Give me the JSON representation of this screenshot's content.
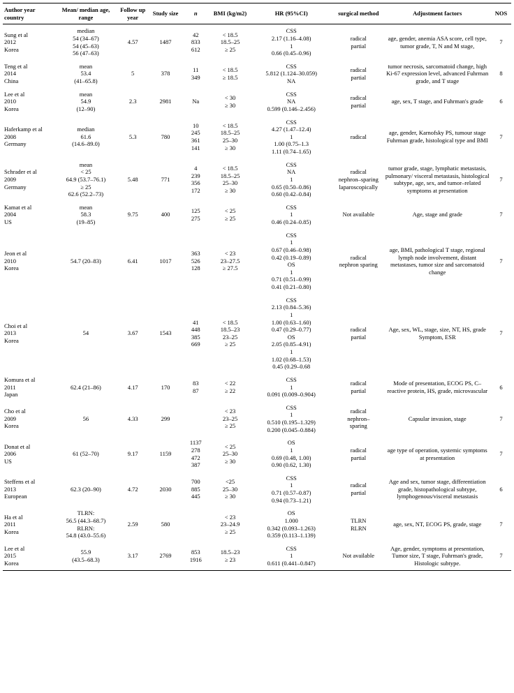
{
  "columns": [
    "Author year country",
    "Mean/ median age, range",
    "Follow up year",
    "Study size",
    "n",
    "BMI (kg/m2)",
    "HR (95%CI)",
    "surgical method",
    "Adjustment factors",
    "NOS"
  ],
  "rows": [
    {
      "author": "Sung et al\n2012\nKorea",
      "age": "median\n54 (34–67)\n54 (45–63)\n56 (47–63)",
      "fu": "4.57",
      "size": "1487",
      "n": "42\n833\n612",
      "bmi": "< 18.5\n18.5–25\n≥ 25",
      "hr": "CSS\n2.17 (1.16–4.08)\n1\n0.66 (0.45–0.96)",
      "surg": "radical\npartial",
      "adj": "age, gender, anemia ASA score, cell type, tumor grade, T, N and M stage,",
      "nos": "7"
    },
    {
      "author": "Teng et al\n2014\nChina",
      "age": "mean\n53.4\n(41–65.8)",
      "fu": "5",
      "size": "378",
      "n": "11\n349",
      "bmi": "< 18.5\n≥ 18.5",
      "hr": "CSS\n5.812 (1.124–30.059)\nNA",
      "surg": "radical\npartial",
      "adj": "tumor necrosis, sarcomatoid change, high Ki-67 expression level, advanced Fuhrman grade, and T stage",
      "nos": "8"
    },
    {
      "author": "Lee et al\n2010\nKorea",
      "age": "mean\n54.9\n(12–90)",
      "fu": "2.3",
      "size": "2981",
      "n": "Na",
      "bmi": "< 30\n≥ 30",
      "hr": "CSS\nNA\n0.599 (0.146–2.456)",
      "surg": "radical\npartial",
      "adj": "age, sex, T stage, and Fuhrman's grade",
      "nos": "6"
    },
    {
      "author": "Haferkamp et al\n2008\nGermany",
      "age": "median\n61.6\n(14.6–89.0)",
      "fu": "5.3",
      "size": "780",
      "n": "10\n245\n361\n141",
      "bmi": "< 18.5\n18.5–25\n25–30\n≥ 30",
      "hr": "CSS\n4.27 (1.47–12.4)\n1\n1.00 (0.75–1.3\n1.11 (0.74–1.65)",
      "surg": "radical",
      "adj": "age, gender, Karnofsky PS, tumour stage Fuhrman grade, histological type and BMI",
      "nos": "7"
    },
    {
      "author": "Schrader et al\n2009\nGermany",
      "age": "mean\n< 25\n64.9 (53.7–76.1)\n≥ 25\n62.6 (52.2–73)",
      "fu": "5.48",
      "size": "771",
      "n": "4\n239\n356\n172",
      "bmi": "< 18.5\n18.5–25\n25–30\n≥ 30",
      "hr": "CSS\nNA\n1\n0.65 (0.50–0.86)\n0.60 (0.42–0.84)",
      "surg": "radical\nnephron–sparing\nlaparoscopically",
      "adj": "tumor grade, stage, lymphatic metastasis, pulmonary/ visceral metastasis, histological subtype, age, sex, and tumor–related symptoms at presentation",
      "nos": "7"
    },
    {
      "author": "Kamat et al\n2004\nUS",
      "age": "mean\n58.3\n(19–85)",
      "fu": "9.75",
      "size": "400",
      "n": "125\n275",
      "bmi": "< 25\n≥ 25",
      "hr": "CSS\n1\n0.46 (0.24–0.85)",
      "surg": "Not available",
      "adj": "Age, stage and grade",
      "nos": "7"
    },
    {
      "author": "Jeon et al\n2010\nKorea",
      "age": "54.7 (20–83)",
      "fu": "6.41",
      "size": "1017",
      "n": "363\n526\n128",
      "bmi": "< 23\n23–27.5\n≥ 27.5",
      "hr": "CSS\n1\n0.67 (0.46–0.98)\n0.42 (0.19–0.89)\nOS\n1\n0.71 (0.51–0.99)\n0.41 (0.21–0.80)",
      "surg": "radical\nnephron sparing",
      "adj": "age, BMI, pathological T stage, regional lymph node involvement, distant metastases, tumor size and sarcomatoid change",
      "nos": "7"
    },
    {
      "author": "Choi et al\n2013\nKorea",
      "age": "54",
      "fu": "3.67",
      "size": "1543",
      "n": "41\n448\n385\n669",
      "bmi": "< 18.5\n18.5–23\n23–25\n≥ 25",
      "hr": "CSS\n2.13 (0.84–5.36)\n1\n1.00 (0.63–1.60)\n0.47 (0.29–0.77)\nOS\n2.05 (0.85–4.91)\n1\n1.02 (0.68–1.53)\n0.45 (0.29–0.68",
      "surg": "radical\npartial",
      "adj": "Age, sex, WL, stage, size, NT, HS, grade Symptom, ESR",
      "nos": "7"
    },
    {
      "author": "Komura et al\n2011\nJapan",
      "age": "62.4 (21–86)",
      "fu": "4.17",
      "size": "170",
      "n": "83\n87",
      "bmi": "< 22\n≥ 22",
      "hr": "CSS\n1\n0.091 (0.009–0.904)",
      "surg": "radical\npartial",
      "adj": "Mode of presentation, ECOG PS, C–reactive protein, HS, grade, microvascular",
      "nos": "6"
    },
    {
      "author": "Cho et al\n2009\nKorea",
      "age": "56",
      "fu": "4.33",
      "size": "299",
      "n": "",
      "bmi": "< 23\n23–25\n≥ 25",
      "hr": "CSS\n1\n0.510 (0.195–1.329)\n0.200 (0.045–0.884)",
      "surg": "radical\nnephron–\nsparing",
      "adj": "Capsular invasion, stage",
      "nos": "7"
    },
    {
      "author": "Donat et al\n2006\nUS",
      "age": "61 (52–70)",
      "fu": "9.17",
      "size": "1159",
      "n": "1137\n278\n472\n387",
      "bmi": "< 25\n25–30\n≥ 30",
      "hr": "OS\n1\n0.69 (0.48, 1.00)\n0.90 (0.62, 1.30)",
      "surg": "radical\npartial",
      "adj": "age type of operation, systemic symptoms at presentation",
      "nos": "7"
    },
    {
      "author": "Steffens et al\n2013\nEuropean",
      "age": "62.3 (20–90)",
      "fu": "4.72",
      "size": "2030",
      "n": "700\n885\n445",
      "bmi": "<25\n25–30\n≥ 30",
      "hr": "CSS\n1\n0.71 (0.57–0.87)\n0.94 (0.73–1.21)",
      "surg": "radical\npartial",
      "adj": "Age and sex, tumor stage, differentiation grade, histopathological subtype, lymphogenous/visceral metastasis",
      "nos": "6"
    },
    {
      "author": "Ha et al\n2011\nKorea",
      "age": "TLRN:\n56.5 (44.3–68.7)\nRLRN:\n54.8 (43.0–55.6)",
      "fu": "2.59",
      "size": "580",
      "n": "",
      "bmi": "< 23\n23–24.9\n≥ 25",
      "hr": "OS\n1.000\n0.342 (0.093–1.263)\n0.359 (0.113–1.139)",
      "surg": "TLRN\nRLRN",
      "adj": "age, sex, NT, ECOG PS, grade, stage",
      "nos": "7"
    },
    {
      "author": "Lee et al\n2015\nKorea",
      "age": "55.9\n(43.5–68.3)",
      "fu": "3.17",
      "size": "2769",
      "n": "853\n1916",
      "bmi": "18.5–23\n≥ 23",
      "hr": "CSS\n1\n0.611 (0.441–0.847)",
      "surg": "Not available",
      "adj": "Age, gender, symptoms at presentation, Tumor size, T stage, Fuhrman's grade, Histologic subtype.",
      "nos": "7"
    }
  ]
}
